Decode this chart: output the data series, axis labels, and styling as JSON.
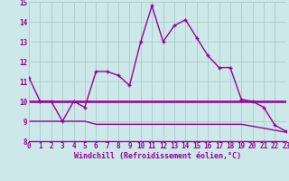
{
  "xlabel": "Windchill (Refroidissement éolien,°C)",
  "hours": [
    0,
    1,
    2,
    3,
    4,
    5,
    6,
    7,
    8,
    9,
    10,
    11,
    12,
    13,
    14,
    15,
    16,
    17,
    18,
    19,
    20,
    21,
    22,
    23
  ],
  "main_line": [
    11.2,
    10.0,
    10.0,
    9.0,
    10.0,
    9.7,
    11.5,
    11.5,
    11.3,
    10.8,
    13.0,
    14.8,
    13.0,
    13.8,
    14.1,
    13.2,
    12.3,
    11.7,
    11.7,
    10.1,
    10.0,
    9.7,
    8.8,
    8.5
  ],
  "upper_flat": [
    10.0,
    10.0,
    10.0,
    10.0,
    10.0,
    10.0,
    10.0,
    10.0,
    10.0,
    10.0,
    10.0,
    10.0,
    10.0,
    10.0,
    10.0,
    10.0,
    10.0,
    10.0,
    10.0,
    10.0,
    10.0,
    10.0,
    10.0,
    10.0
  ],
  "lower_flat": [
    9.0,
    9.0,
    9.0,
    9.0,
    9.0,
    9.0,
    8.85,
    8.85,
    8.85,
    8.85,
    8.85,
    8.85,
    8.85,
    8.85,
    8.85,
    8.85,
    8.85,
    8.85,
    8.85,
    8.85,
    8.75,
    8.65,
    8.55,
    8.45
  ],
  "line_color": "#990099",
  "bg_color": "#cce8e8",
  "grid_color": "#aacccc",
  "ylim": [
    8,
    15
  ],
  "yticks": [
    8,
    9,
    10,
    11,
    12,
    13,
    14,
    15
  ],
  "xticks": [
    0,
    1,
    2,
    3,
    4,
    5,
    6,
    7,
    8,
    9,
    10,
    11,
    12,
    13,
    14,
    15,
    16,
    17,
    18,
    19,
    20,
    21,
    22,
    23
  ],
  "tick_fontsize": 5.5,
  "label_fontsize": 6.0
}
